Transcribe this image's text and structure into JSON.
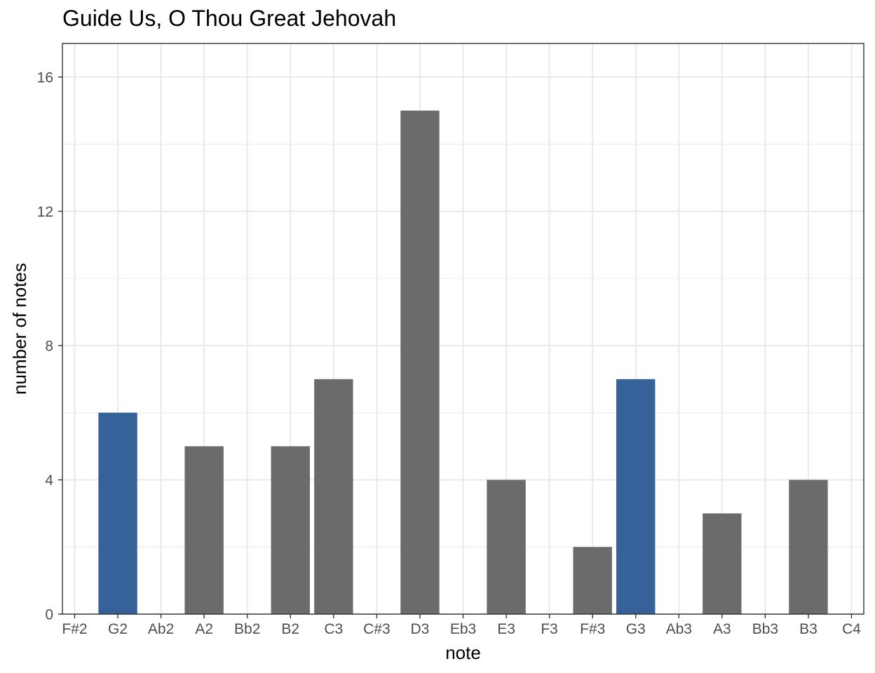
{
  "chart_data": {
    "type": "bar",
    "title": "Guide Us, O Thou Great Jehovah",
    "xlabel": "note",
    "ylabel": "number of notes",
    "categories": [
      "F#2",
      "G2",
      "Ab2",
      "A2",
      "Bb2",
      "B2",
      "C3",
      "C#3",
      "D3",
      "Eb3",
      "E3",
      "F3",
      "F#3",
      "G3",
      "Ab3",
      "A3",
      "Bb3",
      "B3",
      "C4"
    ],
    "values": [
      0,
      6,
      0,
      5,
      0,
      5,
      7,
      0,
      15,
      0,
      4,
      0,
      2,
      7,
      0,
      3,
      0,
      4,
      0
    ],
    "highlighted": [
      "G2",
      "G3"
    ],
    "ylim": [
      0,
      17
    ],
    "yticks": [
      0,
      4,
      8,
      12,
      16
    ],
    "grid": true,
    "colors": {
      "bar": "#6b6b6b",
      "highlight": "#366299",
      "grid": "#ebebeb",
      "border": "#333333"
    }
  }
}
